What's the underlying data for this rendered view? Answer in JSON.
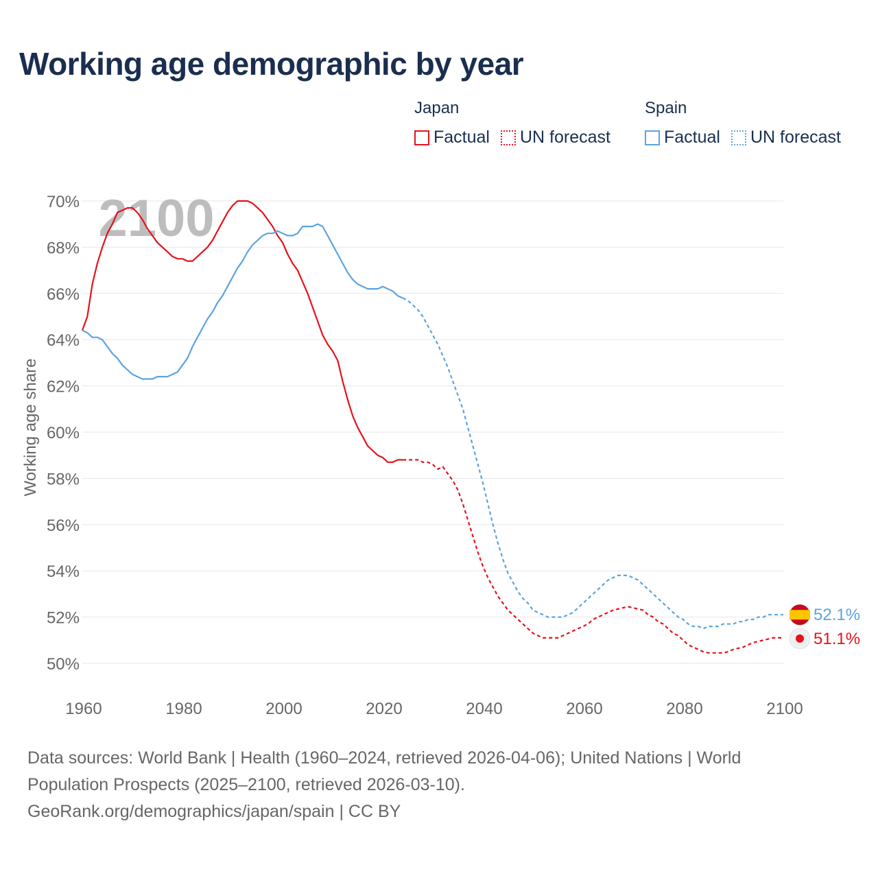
{
  "title": "Working age demographic by year",
  "legend": {
    "groups": [
      {
        "country": "Japan",
        "factual_label": "Factual",
        "forecast_label": "UN forecast",
        "color": "#e8101a"
      },
      {
        "country": "Spain",
        "factual_label": "Factual",
        "forecast_label": "UN forecast",
        "color": "#5ba3e0"
      }
    ]
  },
  "year_watermark": "2100",
  "end_labels": {
    "spain": "52.1%",
    "japan": "51.1%"
  },
  "footer": {
    "sources": "Data sources: World Bank | Health (1960–2024, retrieved 2026-04-06); United Nations | World Population Prospects (2025–2100, retrieved 2026-03-10).",
    "credit": "GeoRank.org/demographics/japan/spain | CC BY"
  },
  "chart_data": {
    "type": "line",
    "title": "Working age demographic by year",
    "xlabel": "",
    "ylabel": "Working age share",
    "xlim": [
      1960,
      2100
    ],
    "ylim": [
      49,
      70.5
    ],
    "x_ticks": [
      1960,
      1980,
      2000,
      2020,
      2040,
      2060,
      2080,
      2100
    ],
    "y_ticks": [
      50,
      52,
      54,
      56,
      58,
      60,
      62,
      64,
      66,
      68,
      70
    ],
    "y_tick_labels": [
      "50%",
      "52%",
      "54%",
      "56%",
      "58%",
      "60%",
      "62%",
      "64%",
      "66%",
      "68%",
      "70%"
    ],
    "factual_end": 2024,
    "series": [
      {
        "name": "Japan",
        "color": "#e8101a",
        "points": [
          [
            1960,
            64.4
          ],
          [
            1961,
            65.0
          ],
          [
            1962,
            66.4
          ],
          [
            1963,
            67.3
          ],
          [
            1964,
            68.0
          ],
          [
            1965,
            68.6
          ],
          [
            1966,
            69.0
          ],
          [
            1967,
            69.5
          ],
          [
            1968,
            69.6
          ],
          [
            1969,
            69.7
          ],
          [
            1970,
            69.7
          ],
          [
            1971,
            69.5
          ],
          [
            1972,
            69.2
          ],
          [
            1973,
            68.8
          ],
          [
            1974,
            68.5
          ],
          [
            1975,
            68.2
          ],
          [
            1976,
            68.0
          ],
          [
            1977,
            67.8
          ],
          [
            1978,
            67.6
          ],
          [
            1979,
            67.5
          ],
          [
            1980,
            67.5
          ],
          [
            1981,
            67.4
          ],
          [
            1982,
            67.4
          ],
          [
            1983,
            67.6
          ],
          [
            1984,
            67.8
          ],
          [
            1985,
            68.0
          ],
          [
            1986,
            68.3
          ],
          [
            1987,
            68.7
          ],
          [
            1988,
            69.1
          ],
          [
            1989,
            69.5
          ],
          [
            1990,
            69.8
          ],
          [
            1991,
            70.0
          ],
          [
            1992,
            70.0
          ],
          [
            1993,
            70.0
          ],
          [
            1994,
            69.9
          ],
          [
            1995,
            69.7
          ],
          [
            1996,
            69.5
          ],
          [
            1997,
            69.2
          ],
          [
            1998,
            68.9
          ],
          [
            1999,
            68.5
          ],
          [
            2000,
            68.2
          ],
          [
            2001,
            67.7
          ],
          [
            2002,
            67.3
          ],
          [
            2003,
            67.0
          ],
          [
            2004,
            66.5
          ],
          [
            2005,
            66.0
          ],
          [
            2006,
            65.4
          ],
          [
            2007,
            64.8
          ],
          [
            2008,
            64.2
          ],
          [
            2009,
            63.8
          ],
          [
            2010,
            63.5
          ],
          [
            2011,
            63.1
          ],
          [
            2012,
            62.2
          ],
          [
            2013,
            61.4
          ],
          [
            2014,
            60.7
          ],
          [
            2015,
            60.2
          ],
          [
            2016,
            59.8
          ],
          [
            2017,
            59.4
          ],
          [
            2018,
            59.2
          ],
          [
            2019,
            59.0
          ],
          [
            2020,
            58.9
          ],
          [
            2021,
            58.7
          ],
          [
            2022,
            58.7
          ],
          [
            2023,
            58.8
          ],
          [
            2024,
            58.8
          ],
          [
            2025,
            58.8
          ],
          [
            2026,
            58.8
          ],
          [
            2027,
            58.8
          ],
          [
            2028,
            58.7
          ],
          [
            2029,
            58.7
          ],
          [
            2030,
            58.6
          ],
          [
            2031,
            58.4
          ],
          [
            2032,
            58.5
          ],
          [
            2033,
            58.2
          ],
          [
            2034,
            57.9
          ],
          [
            2035,
            57.5
          ],
          [
            2036,
            56.9
          ],
          [
            2037,
            56.2
          ],
          [
            2038,
            55.5
          ],
          [
            2039,
            54.8
          ],
          [
            2040,
            54.2
          ],
          [
            2041,
            53.7
          ],
          [
            2042,
            53.3
          ],
          [
            2043,
            52.9
          ],
          [
            2044,
            52.6
          ],
          [
            2045,
            52.3
          ],
          [
            2046,
            52.1
          ],
          [
            2047,
            51.9
          ],
          [
            2048,
            51.7
          ],
          [
            2049,
            51.5
          ],
          [
            2050,
            51.3
          ],
          [
            2051,
            51.2
          ],
          [
            2052,
            51.1
          ],
          [
            2053,
            51.1
          ],
          [
            2054,
            51.1
          ],
          [
            2055,
            51.1
          ],
          [
            2056,
            51.2
          ],
          [
            2057,
            51.3
          ],
          [
            2058,
            51.4
          ],
          [
            2059,
            51.5
          ],
          [
            2060,
            51.6
          ],
          [
            2061,
            51.7
          ],
          [
            2062,
            51.9
          ],
          [
            2063,
            52.0
          ],
          [
            2064,
            52.1
          ],
          [
            2065,
            52.2
          ],
          [
            2066,
            52.3
          ],
          [
            2067,
            52.35
          ],
          [
            2068,
            52.4
          ],
          [
            2069,
            52.45
          ],
          [
            2070,
            52.4
          ],
          [
            2071,
            52.35
          ],
          [
            2072,
            52.3
          ],
          [
            2073,
            52.1
          ],
          [
            2074,
            52.0
          ],
          [
            2075,
            51.8
          ],
          [
            2076,
            51.7
          ],
          [
            2077,
            51.5
          ],
          [
            2078,
            51.3
          ],
          [
            2079,
            51.2
          ],
          [
            2080,
            51.0
          ],
          [
            2081,
            50.8
          ],
          [
            2082,
            50.7
          ],
          [
            2083,
            50.6
          ],
          [
            2084,
            50.5
          ],
          [
            2085,
            50.45
          ],
          [
            2086,
            50.45
          ],
          [
            2087,
            50.45
          ],
          [
            2088,
            50.45
          ],
          [
            2089,
            50.5
          ],
          [
            2090,
            50.6
          ],
          [
            2091,
            50.65
          ],
          [
            2092,
            50.7
          ],
          [
            2093,
            50.8
          ],
          [
            2094,
            50.9
          ],
          [
            2095,
            50.95
          ],
          [
            2096,
            51.0
          ],
          [
            2097,
            51.05
          ],
          [
            2098,
            51.1
          ],
          [
            2099,
            51.1
          ],
          [
            2100,
            51.1
          ]
        ]
      },
      {
        "name": "Spain",
        "color": "#5ba3e0",
        "points": [
          [
            1960,
            64.4
          ],
          [
            1961,
            64.3
          ],
          [
            1962,
            64.1
          ],
          [
            1963,
            64.1
          ],
          [
            1964,
            64.0
          ],
          [
            1965,
            63.7
          ],
          [
            1966,
            63.4
          ],
          [
            1967,
            63.2
          ],
          [
            1968,
            62.9
          ],
          [
            1969,
            62.7
          ],
          [
            1970,
            62.5
          ],
          [
            1971,
            62.4
          ],
          [
            1972,
            62.3
          ],
          [
            1973,
            62.3
          ],
          [
            1974,
            62.3
          ],
          [
            1975,
            62.4
          ],
          [
            1976,
            62.4
          ],
          [
            1977,
            62.4
          ],
          [
            1978,
            62.5
          ],
          [
            1979,
            62.6
          ],
          [
            1980,
            62.9
          ],
          [
            1981,
            63.2
          ],
          [
            1982,
            63.7
          ],
          [
            1983,
            64.1
          ],
          [
            1984,
            64.5
          ],
          [
            1985,
            64.9
          ],
          [
            1986,
            65.2
          ],
          [
            1987,
            65.6
          ],
          [
            1988,
            65.9
          ],
          [
            1989,
            66.3
          ],
          [
            1990,
            66.7
          ],
          [
            1991,
            67.1
          ],
          [
            1992,
            67.4
          ],
          [
            1993,
            67.8
          ],
          [
            1994,
            68.1
          ],
          [
            1995,
            68.3
          ],
          [
            1996,
            68.5
          ],
          [
            1997,
            68.6
          ],
          [
            1998,
            68.6
          ],
          [
            1999,
            68.7
          ],
          [
            2000,
            68.6
          ],
          [
            2001,
            68.5
          ],
          [
            2002,
            68.5
          ],
          [
            2003,
            68.6
          ],
          [
            2004,
            68.9
          ],
          [
            2005,
            68.9
          ],
          [
            2006,
            68.9
          ],
          [
            2007,
            69.0
          ],
          [
            2008,
            68.9
          ],
          [
            2009,
            68.5
          ],
          [
            2010,
            68.1
          ],
          [
            2011,
            67.7
          ],
          [
            2012,
            67.3
          ],
          [
            2013,
            66.9
          ],
          [
            2014,
            66.6
          ],
          [
            2015,
            66.4
          ],
          [
            2016,
            66.3
          ],
          [
            2017,
            66.2
          ],
          [
            2018,
            66.2
          ],
          [
            2019,
            66.2
          ],
          [
            2020,
            66.3
          ],
          [
            2021,
            66.2
          ],
          [
            2022,
            66.1
          ],
          [
            2023,
            65.9
          ],
          [
            2024,
            65.8
          ],
          [
            2025,
            65.7
          ],
          [
            2026,
            65.5
          ],
          [
            2027,
            65.3
          ],
          [
            2028,
            65.0
          ],
          [
            2029,
            64.6
          ],
          [
            2030,
            64.2
          ],
          [
            2031,
            63.8
          ],
          [
            2032,
            63.3
          ],
          [
            2033,
            62.8
          ],
          [
            2034,
            62.2
          ],
          [
            2035,
            61.6
          ],
          [
            2036,
            61.0
          ],
          [
            2037,
            60.2
          ],
          [
            2038,
            59.4
          ],
          [
            2039,
            58.6
          ],
          [
            2040,
            57.8
          ],
          [
            2041,
            56.9
          ],
          [
            2042,
            56.0
          ],
          [
            2043,
            55.2
          ],
          [
            2044,
            54.5
          ],
          [
            2045,
            53.9
          ],
          [
            2046,
            53.5
          ],
          [
            2047,
            53.1
          ],
          [
            2048,
            52.8
          ],
          [
            2049,
            52.6
          ],
          [
            2050,
            52.3
          ],
          [
            2051,
            52.2
          ],
          [
            2052,
            52.1
          ],
          [
            2053,
            52.0
          ],
          [
            2054,
            52.0
          ],
          [
            2055,
            52.0
          ],
          [
            2056,
            52.0
          ],
          [
            2057,
            52.1
          ],
          [
            2058,
            52.2
          ],
          [
            2059,
            52.4
          ],
          [
            2060,
            52.6
          ],
          [
            2061,
            52.8
          ],
          [
            2062,
            53.0
          ],
          [
            2063,
            53.2
          ],
          [
            2064,
            53.4
          ],
          [
            2065,
            53.6
          ],
          [
            2066,
            53.7
          ],
          [
            2067,
            53.8
          ],
          [
            2068,
            53.8
          ],
          [
            2069,
            53.8
          ],
          [
            2070,
            53.7
          ],
          [
            2071,
            53.6
          ],
          [
            2072,
            53.4
          ],
          [
            2073,
            53.2
          ],
          [
            2074,
            53.0
          ],
          [
            2075,
            52.8
          ],
          [
            2076,
            52.6
          ],
          [
            2077,
            52.4
          ],
          [
            2078,
            52.2
          ],
          [
            2079,
            52.0
          ],
          [
            2080,
            51.9
          ],
          [
            2081,
            51.7
          ],
          [
            2082,
            51.6
          ],
          [
            2083,
            51.6
          ],
          [
            2084,
            51.5
          ],
          [
            2085,
            51.6
          ],
          [
            2086,
            51.6
          ],
          [
            2087,
            51.6
          ],
          [
            2088,
            51.7
          ],
          [
            2089,
            51.7
          ],
          [
            2090,
            51.7
          ],
          [
            2091,
            51.8
          ],
          [
            2092,
            51.8
          ],
          [
            2093,
            51.9
          ],
          [
            2094,
            51.9
          ],
          [
            2095,
            52.0
          ],
          [
            2096,
            52.0
          ],
          [
            2097,
            52.1
          ],
          [
            2098,
            52.1
          ],
          [
            2099,
            52.1
          ],
          [
            2100,
            52.1
          ]
        ]
      }
    ]
  }
}
